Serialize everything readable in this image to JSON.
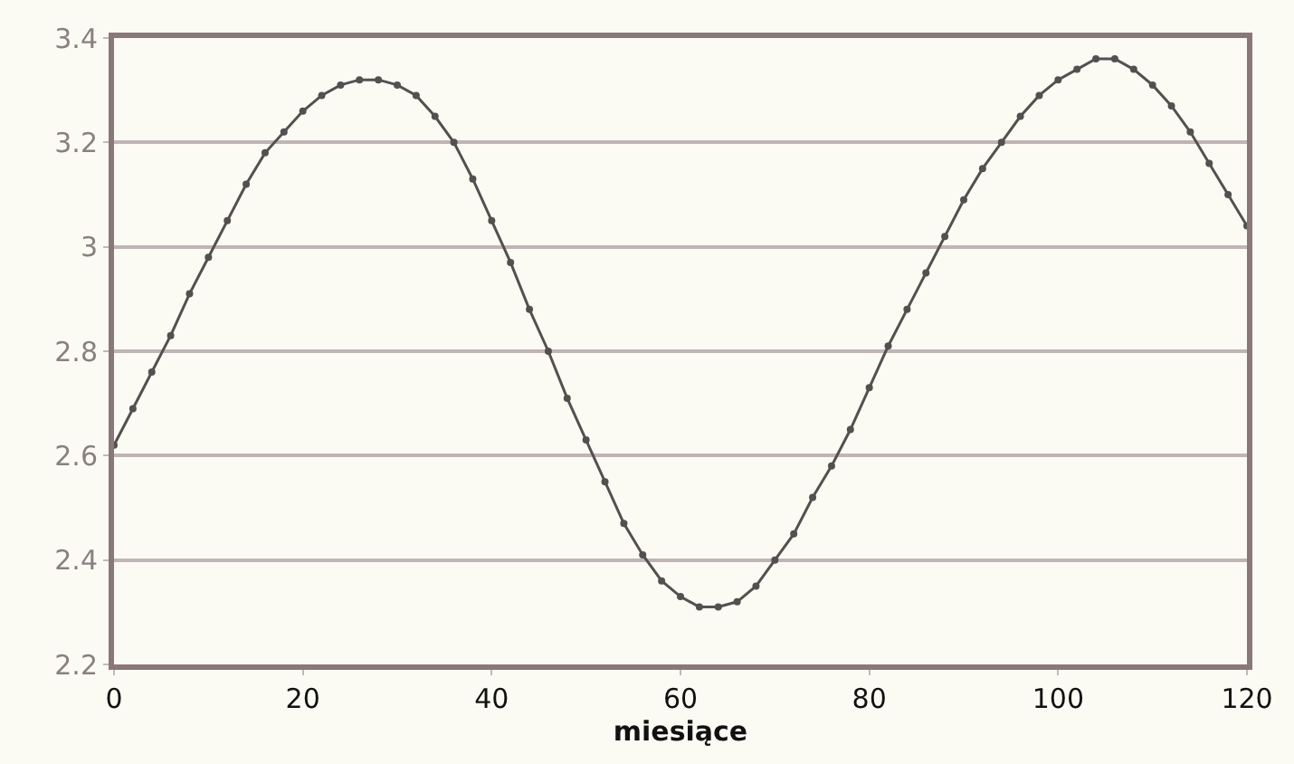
{
  "chart_data": {
    "type": "line",
    "xlabel": "miesiące",
    "x": [
      0,
      2,
      4,
      6,
      8,
      10,
      12,
      14,
      16,
      18,
      20,
      22,
      24,
      26,
      28,
      30,
      32,
      34,
      36,
      38,
      40,
      42,
      44,
      46,
      48,
      50,
      52,
      54,
      56,
      58,
      60,
      62,
      64,
      66,
      68,
      70,
      72,
      74,
      76,
      78,
      80,
      82,
      84,
      86,
      88,
      90,
      92,
      94,
      96,
      98,
      100,
      102,
      104,
      106,
      108,
      110,
      112,
      114,
      116,
      118,
      120
    ],
    "series": [
      {
        "color": "#555050",
        "values": [
          2.62,
          2.69,
          2.76,
          2.83,
          2.91,
          2.98,
          3.05,
          3.12,
          3.18,
          3.22,
          3.26,
          3.29,
          3.31,
          3.32,
          3.32,
          3.31,
          3.29,
          3.25,
          3.2,
          3.13,
          3.05,
          2.97,
          2.88,
          2.8,
          2.71,
          2.63,
          2.55,
          2.47,
          2.41,
          2.36,
          2.33,
          2.31,
          2.31,
          2.32,
          2.35,
          2.4,
          2.45,
          2.52,
          2.58,
          2.65,
          2.73,
          2.81,
          2.88,
          2.95,
          3.02,
          3.09,
          3.15,
          3.2,
          3.25,
          3.29,
          3.32,
          3.34,
          3.36,
          3.36,
          3.34,
          3.31,
          3.27,
          3.22,
          3.16,
          3.1,
          3.04
        ]
      }
    ],
    "xlim": [
      0,
      120
    ],
    "xticks": [
      0,
      20,
      40,
      60,
      80,
      100,
      120
    ],
    "ylim": [
      2.2,
      3.4
    ],
    "yticks": [
      2.2,
      2.4,
      2.6,
      2.8,
      3,
      3.2,
      3.4
    ],
    "grid": "y",
    "legend": false,
    "marker": "circle",
    "line_style": "solid"
  }
}
